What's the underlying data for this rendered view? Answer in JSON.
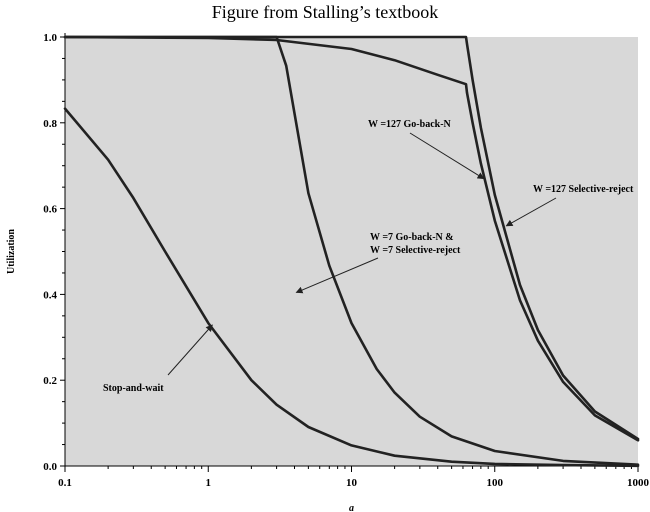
{
  "page_title": "Figure from Stalling’s textbook",
  "chart_data": {
    "type": "line",
    "title": "Figure from Stalling’s textbook",
    "xlabel": "a",
    "ylabel": "Utilization",
    "xscale": "log",
    "xlim": [
      0.1,
      1000
    ],
    "ylim": [
      0.0,
      1.0
    ],
    "xticks": [
      "0.1",
      "1",
      "10",
      "100",
      "1000"
    ],
    "yticks": [
      "0.0",
      "0.2",
      "0.4",
      "0.6",
      "0.8",
      "1.0"
    ],
    "grid": false,
    "background": "#d8d8d8",
    "line_color": "#222222",
    "series": [
      {
        "name": "Stop-and-wait",
        "x": [
          0.1,
          0.2,
          0.3,
          0.5,
          1,
          2,
          3,
          5,
          10,
          20,
          50,
          100,
          300,
          1000
        ],
        "y": [
          0.833,
          0.714,
          0.625,
          0.5,
          0.333,
          0.2,
          0.143,
          0.091,
          0.048,
          0.024,
          0.01,
          0.005,
          0.002,
          0.0005
        ]
      },
      {
        "name": "W = 7 Go-back-N & W = 7 Selective-reject",
        "x": [
          0.1,
          1,
          2,
          3,
          3.5,
          5,
          7,
          10,
          15,
          20,
          30,
          50,
          100,
          300,
          1000
        ],
        "y": [
          1.0,
          1.0,
          1.0,
          1.0,
          0.933,
          0.636,
          0.467,
          0.333,
          0.226,
          0.171,
          0.115,
          0.069,
          0.035,
          0.012,
          0.003
        ]
      },
      {
        "name": "W = 127 Go-back-N",
        "x": [
          0.1,
          1,
          3,
          10,
          20,
          40,
          63,
          64,
          70,
          80,
          100,
          150,
          200,
          300,
          500,
          1000
        ],
        "y": [
          1.0,
          0.998,
          0.993,
          0.972,
          0.946,
          0.912,
          0.89,
          0.87,
          0.8,
          0.705,
          0.572,
          0.386,
          0.292,
          0.196,
          0.118,
          0.06
        ]
      },
      {
        "name": "W = 127 Selective-reject",
        "x": [
          0.1,
          1,
          10,
          63,
          64,
          70,
          80,
          100,
          150,
          200,
          300,
          500,
          1000
        ],
        "y": [
          1.0,
          1.0,
          1.0,
          1.0,
          0.984,
          0.9,
          0.788,
          0.632,
          0.422,
          0.317,
          0.211,
          0.127,
          0.063
        ]
      }
    ],
    "annotations": [
      {
        "text": "Stop-and-wait",
        "series": "Stop-and-wait",
        "arrow_to_x": 1
      },
      {
        "text_line1": "W =7 Go-back-N &",
        "text_line2": "W =7 Selective-reject",
        "series": "W = 7 Go-back-N & W = 7 Selective-reject",
        "arrow_to_x": 4
      },
      {
        "text": "W =127 Go-back-N",
        "series": "W = 127 Go-back-N",
        "arrow_to_x": 85
      },
      {
        "text": "W =127 Selective-reject",
        "series": "W = 127 Selective-reject",
        "arrow_to_x": 115
      }
    ]
  }
}
